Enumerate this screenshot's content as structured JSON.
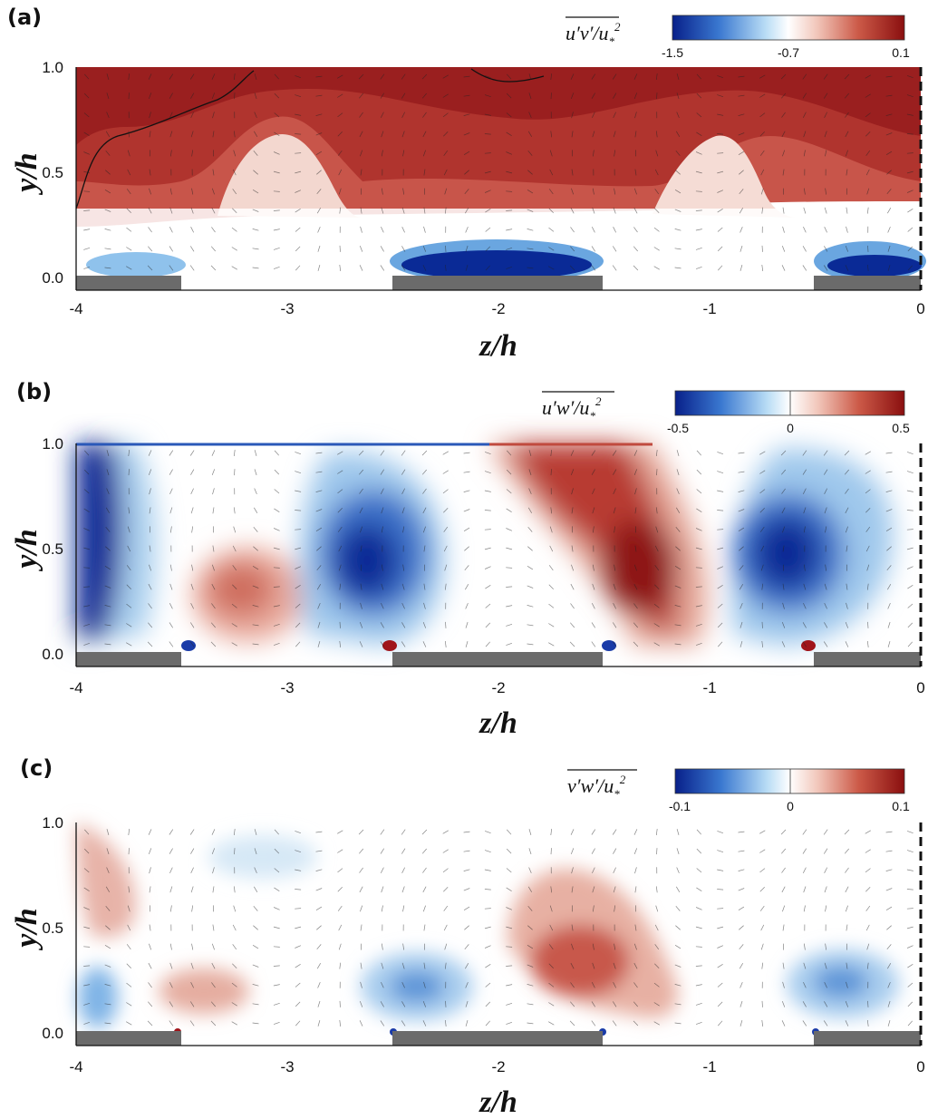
{
  "chart_data": [
    {
      "type": "heatmap",
      "panel_label": "(a)",
      "quantity_base": "u′v′",
      "quantity_suffix": "/u",
      "colorbar": {
        "min": -1.5,
        "max": 0.1,
        "tick_labels": [
          "-1.5",
          "-0.7",
          "0.1"
        ]
      },
      "xlabel": "z/h",
      "ylabel": "y/h",
      "xlim": [
        -4,
        0
      ],
      "ylim": [
        0,
        1
      ],
      "xticks": [
        "-4",
        "-3",
        "-2",
        "-1",
        "0"
      ],
      "yticks": [
        "0.0",
        "0.5",
        "1.0"
      ],
      "field_blobs": [
        {
          "z": -2.3,
          "y": 0.55,
          "value": 0.09,
          "rz": 1.7,
          "ry": 0.45
        },
        {
          "z": -3.7,
          "y": 0.92,
          "value": 0.1,
          "rz": 0.55,
          "ry": 0.25
        },
        {
          "z": -1.9,
          "y": 0.06,
          "value": -1.5,
          "rz": 0.55,
          "ry": 0.07
        },
        {
          "z": -0.25,
          "y": 0.07,
          "value": -1.4,
          "rz": 0.4,
          "ry": 0.07
        },
        {
          "z": -3.65,
          "y": 0.07,
          "value": -1.1,
          "rz": 0.35,
          "ry": 0.06
        }
      ],
      "rough_strips_z": [
        [
          -4,
          -3.5
        ],
        [
          -2.5,
          -1.5
        ],
        [
          -0.5,
          0
        ]
      ]
    },
    {
      "type": "heatmap",
      "panel_label": "(b)",
      "quantity_base": "u′w′",
      "quantity_suffix": "/u",
      "colorbar": {
        "min": -0.5,
        "max": 0.5,
        "tick_labels": [
          "-0.5",
          "0",
          "0.5"
        ]
      },
      "xlabel": "z/h",
      "ylabel": "y/h",
      "xlim": [
        -4,
        0
      ],
      "ylim": [
        0,
        1
      ],
      "xticks": [
        "-4",
        "-3",
        "-2",
        "-1",
        "0"
      ],
      "yticks": [
        "0.0",
        "0.5",
        "1.0"
      ],
      "field_blobs": [
        {
          "z": -3.88,
          "y": 0.5,
          "value": -0.5,
          "rz": 0.14,
          "ry": 0.42
        },
        {
          "z": -3.25,
          "y": 0.3,
          "value": 0.25,
          "rz": 0.22,
          "ry": 0.17
        },
        {
          "z": -2.58,
          "y": 0.45,
          "value": -0.5,
          "rz": 0.3,
          "ry": 0.3
        },
        {
          "z": -1.35,
          "y": 0.4,
          "value": 0.45,
          "rz": 0.4,
          "ry": 0.33
        },
        {
          "z": -1.75,
          "y": 0.85,
          "value": 0.3,
          "rz": 0.35,
          "ry": 0.14
        },
        {
          "z": -0.6,
          "y": 0.45,
          "value": -0.5,
          "rz": 0.28,
          "ry": 0.3
        }
      ],
      "rough_strips_z": [
        [
          -4,
          -3.5
        ],
        [
          -2.5,
          -1.5
        ],
        [
          -0.5,
          0
        ]
      ]
    },
    {
      "type": "heatmap",
      "panel_label": "(c)",
      "quantity_base": "v′w′",
      "quantity_suffix": "/u",
      "colorbar": {
        "min": -0.1,
        "max": 0.1,
        "tick_labels": [
          "-0.1",
          "0",
          "0.1"
        ]
      },
      "xlabel": "z/h",
      "ylabel": "y/h",
      "xlim": [
        -4,
        0
      ],
      "ylim": [
        0,
        1
      ],
      "xticks": [
        "-4",
        "-3",
        "-2",
        "-1",
        "0"
      ],
      "yticks": [
        "0.0",
        "0.5",
        "1.0"
      ],
      "field_blobs": [
        {
          "z": -3.85,
          "y": 0.8,
          "value": 0.04,
          "rz": 0.12,
          "ry": 0.2
        },
        {
          "z": -3.35,
          "y": 0.22,
          "value": 0.04,
          "rz": 0.18,
          "ry": 0.09
        },
        {
          "z": -2.95,
          "y": 0.8,
          "value": -0.025,
          "rz": 0.3,
          "ry": 0.1
        },
        {
          "z": -2.35,
          "y": 0.27,
          "value": -0.06,
          "rz": 0.25,
          "ry": 0.14
        },
        {
          "z": -1.6,
          "y": 0.35,
          "value": 0.08,
          "rz": 0.3,
          "ry": 0.22
        },
        {
          "z": -0.4,
          "y": 0.27,
          "value": -0.06,
          "rz": 0.25,
          "ry": 0.14
        },
        {
          "z": -3.9,
          "y": 0.12,
          "value": -0.05,
          "rz": 0.08,
          "ry": 0.1
        }
      ],
      "rough_strips_z": [
        [
          -4,
          -3.5
        ],
        [
          -2.5,
          -1.5
        ],
        [
          -0.5,
          0
        ]
      ]
    }
  ]
}
